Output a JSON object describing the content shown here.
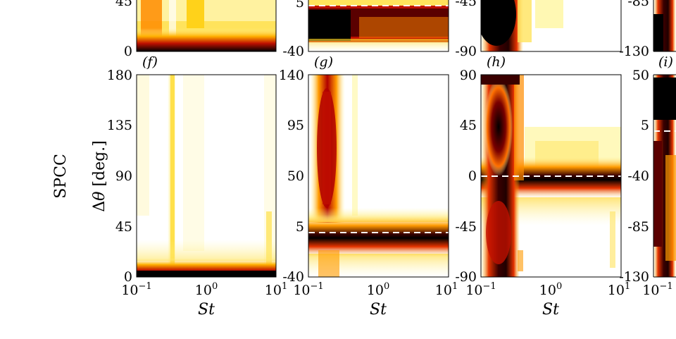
{
  "figure": {
    "row_label": "SPCC",
    "ylabel": "Δθ [deg.]",
    "xlabel": "St",
    "panel_labels": [
      "(f)",
      "(g)",
      "(h)",
      "(i)"
    ]
  },
  "colors": {
    "colormap": [
      "#ffffff",
      "#fff6a0",
      "#ffd21a",
      "#ff9a00",
      "#e63300",
      "#a00000",
      "#3a0000",
      "#000000"
    ],
    "dashed_line": "#ffffff",
    "axis": "#000000"
  },
  "chart_data": [
    {
      "type": "heatmap",
      "panel": "(f)",
      "xscale": "log",
      "xlim": [
        0.1,
        10
      ],
      "ylim": [
        0,
        180
      ],
      "xticks": [
        "10^-1",
        "10^0",
        "10^1"
      ],
      "yticks": [
        "0",
        "45",
        "90",
        "135",
        "180"
      ],
      "features": [
        {
          "kind": "band",
          "y": [
            0,
            10
          ],
          "intensity": 0.75
        },
        {
          "kind": "column",
          "x": 0.3,
          "intensity": 0.3
        }
      ]
    },
    {
      "type": "heatmap",
      "panel": "(g)",
      "xscale": "log",
      "xlim": [
        0.1,
        10
      ],
      "ylim": [
        -40,
        140
      ],
      "xticks": [
        "10^-1",
        "10^0",
        "10^1"
      ],
      "yticks": [
        "-40",
        "5",
        "50",
        "95",
        "140"
      ],
      "dashed_line_y": 0,
      "features": [
        {
          "kind": "band",
          "y": [
            -10,
            10
          ],
          "intensity": 0.95
        },
        {
          "kind": "column",
          "x": 0.17,
          "y": [
            10,
            120
          ],
          "intensity": 0.65
        }
      ]
    },
    {
      "type": "heatmap",
      "panel": "(h)",
      "xscale": "log",
      "xlim": [
        0.1,
        10
      ],
      "ylim": [
        -90,
        90
      ],
      "xticks": [
        "10^-1",
        "10^0",
        "10^1"
      ],
      "yticks": [
        "-90",
        "-45",
        "0",
        "45",
        "90"
      ],
      "dashed_line_y": 0,
      "features": [
        {
          "kind": "band",
          "y": [
            -10,
            10
          ],
          "intensity": 0.9
        },
        {
          "kind": "column",
          "x": 0.15,
          "y": [
            -90,
            90
          ],
          "intensity": 0.9
        },
        {
          "kind": "column",
          "x": 0.3,
          "intensity": 0.4
        }
      ]
    },
    {
      "type": "heatmap",
      "panel": "(i)",
      "xscale": "log",
      "xlim": [
        0.1,
        10
      ],
      "ylim": [
        -130,
        50
      ],
      "xticks": [
        "10^-1"
      ],
      "yticks": [
        "-130",
        "-85",
        "-40",
        "5",
        "50"
      ],
      "dashed_line_y": 0,
      "features": [
        {
          "kind": "column",
          "x": 0.1,
          "intensity": 0.9
        }
      ]
    }
  ],
  "top_row_partial": {
    "axis_bottom_ticks": [
      [
        "45",
        "0"
      ],
      [
        "5",
        "-40"
      ],
      [
        "-45",
        "-90"
      ],
      [
        "-85",
        "-130"
      ]
    ]
  }
}
